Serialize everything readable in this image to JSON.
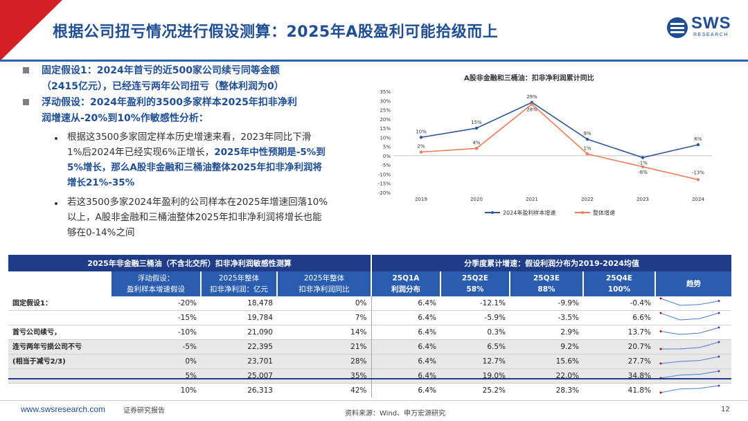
{
  "header": {
    "title": "根据公司扭亏情况进行假设测算：2025年A股盈利可能拾级而上",
    "logo_text": "SWS",
    "logo_sub": "RESEARCH"
  },
  "bullets": {
    "b1_line1": "固定假设1：2024年首亏的近500家公司续亏同等金额",
    "b1_line2": "（2415亿元），已经连亏两年公司扭亏（整体利润为0）",
    "b2_line1": "浮动假设：2024年盈利的3500多家样本2025年扣非净利",
    "b2_line2": "润增速从-20%到10%作敏感性分析：",
    "s1_line1": "根据这3500多家固定样本历史增速来看，2023年同比下滑",
    "s1_line2a": "1%后2024年已经实现6%正增长，",
    "s1_line2b": "2025年中性预期是-5%到",
    "s1_line3": "5%增长，那么A股非金融和三桶油整体2025年扣非净利润将",
    "s1_line4": "增长21%-35%",
    "s2_line1": "若这3500多家2024年盈利的公司样本在2025年增速回落10%",
    "s2_line2": "以上，A股非金融和三桶油整体2025年扣非净利润将增长也能",
    "s2_line3": "够在0-14%之间"
  },
  "chart_data": {
    "type": "line",
    "title": "A股非金融和三桶油：扣非净利润累计同比",
    "x": [
      "2019",
      "2020",
      "2021",
      "2022",
      "2023",
      "2024"
    ],
    "ylim": [
      -20,
      35
    ],
    "yticks": [
      "35%",
      "30%",
      "25%",
      "20%",
      "15%",
      "10%",
      "5%",
      "0%",
      "-5%",
      "-10%",
      "-15%",
      "-20%"
    ],
    "series": [
      {
        "name": "2024年盈利样本增速",
        "color": "#2f5597",
        "values": [
          10,
          15,
          29,
          9,
          -1,
          6
        ],
        "labels": [
          "10%",
          "15%",
          "29%",
          "9%",
          "-1%",
          "6%"
        ]
      },
      {
        "name": "整体增速",
        "color": "#ed7d5a",
        "values": [
          2,
          4,
          28,
          1,
          -6,
          -13
        ],
        "labels": [
          "2%",
          "4%",
          "28%",
          "1%",
          "-6%",
          "-13%"
        ]
      }
    ]
  },
  "table": {
    "left_title": "2025年非金融三桶油（不含北交所）扣非净利润敏感性测算",
    "right_title": "分季度累计增速：假设利润分布为2019-2024均值",
    "h_float_1": "浮动假设：",
    "h_float_2": "盈利样本增速假设",
    "h_profit_1": "2025年整体",
    "h_profit_2": "扣非净利润：亿元",
    "h_yoy_1": "2025年整体",
    "h_yoy_2": "扣非净利润同比",
    "q1_1": "25Q1A",
    "q1_2": "利润分布",
    "q2_1": "25Q2E",
    "q2_2": "58%",
    "q3_1": "25Q3E",
    "q3_2": "88%",
    "q4_1": "25Q4E",
    "q4_2": "100%",
    "trend": "趋势",
    "label_fixed": "固定假设1：",
    "label_a": "首亏公司续亏，",
    "label_b": "连亏两年亏损公司不亏",
    "label_c": "(相当于减亏2/3)",
    "rows": [
      {
        "g": "-20%",
        "p": "18,478",
        "y": "0%",
        "q1": "6.4%",
        "q2": "-12.1%",
        "q3": "-9.9%",
        "q4": "-0.4%",
        "s": [
          6.4,
          -12.1,
          -9.9,
          -0.4
        ]
      },
      {
        "g": "-15%",
        "p": "19,784",
        "y": "7%",
        "q1": "6.4%",
        "q2": "-5.9%",
        "q3": "-3.5%",
        "q4": "6.6%",
        "s": [
          6.4,
          -5.9,
          -3.5,
          6.6
        ]
      },
      {
        "g": "-10%",
        "p": "21,090",
        "y": "14%",
        "q1": "6.4%",
        "q2": "0.3%",
        "q3": "2.9%",
        "q4": "13.7%",
        "s": [
          6.4,
          0.3,
          2.9,
          13.7
        ]
      },
      {
        "g": "-5%",
        "p": "22,395",
        "y": "21%",
        "q1": "6.4%",
        "q2": "6.5%",
        "q3": "9.2%",
        "q4": "20.7%",
        "s": [
          6.4,
          6.5,
          9.2,
          20.7
        ]
      },
      {
        "g": "0%",
        "p": "23,701",
        "y": "28%",
        "q1": "6.4%",
        "q2": "12.7%",
        "q3": "15.6%",
        "q4": "27.7%",
        "s": [
          6.4,
          12.7,
          15.6,
          27.7
        ]
      },
      {
        "g": "5%",
        "p": "25,007",
        "y": "35%",
        "q1": "6.4%",
        "q2": "19.0%",
        "q3": "22.0%",
        "q4": "34.8%",
        "s": [
          6.4,
          19.0,
          22.0,
          34.8
        ]
      },
      {
        "g": "10%",
        "p": "26,313",
        "y": "42%",
        "q1": "6.4%",
        "q2": "25.2%",
        "q3": "28.3%",
        "q4": "41.8%",
        "s": [
          6.4,
          25.2,
          28.3,
          41.8
        ]
      }
    ]
  },
  "footer": {
    "url": "www.swsresearch.com",
    "report": "证券研究报告",
    "source": "资料来源：Wind、申万宏源研究",
    "page": "12"
  }
}
